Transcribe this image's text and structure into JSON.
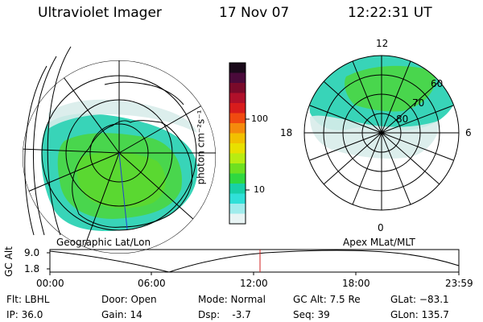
{
  "header": {
    "instrument": "Ultraviolet Imager",
    "date": "17 Nov 07",
    "time": "12:22:31 UT"
  },
  "colorbar": {
    "unit_label": "photon cm⁻²s⁻¹",
    "ticks": [
      "100",
      "10"
    ],
    "colors": [
      "#1a0a1a",
      "#4a0a3a",
      "#7a0a2a",
      "#b0102a",
      "#d81c1c",
      "#f04a10",
      "#f58a0c",
      "#f2c000",
      "#e8e000",
      "#b8ec12",
      "#6ee020",
      "#30d840",
      "#18d0a8",
      "#30e0d8",
      "#a0ecec",
      "#e8f4f4"
    ]
  },
  "left_panel": {
    "caption": "Geographic Lat/Lon"
  },
  "right_panel": {
    "caption": "Apex MLat/MLT",
    "mlt_labels": {
      "top": "12",
      "left": "18",
      "right": "6",
      "bottom": "0"
    },
    "lat_labels": [
      "60",
      "70",
      "80"
    ]
  },
  "altitude_plot": {
    "ylabel": "GC Alt",
    "yticks": [
      "9.0",
      "1.8"
    ],
    "xticks": [
      "00:00",
      "06:00",
      "12:00",
      "18:00",
      "23:59"
    ]
  },
  "status": {
    "flt": "Flt: LBHL",
    "ip": "IP: 36.0",
    "door": "Door: Open",
    "gain": "Gain: 14",
    "mode": "Mode: Normal",
    "dsp": "Dsp:    -3.7",
    "gc_alt": "GC Alt: 7.5 Re",
    "seq": "Seq: 39",
    "glat": "GLat: −83.1",
    "glon": "GLon: 135.7"
  }
}
